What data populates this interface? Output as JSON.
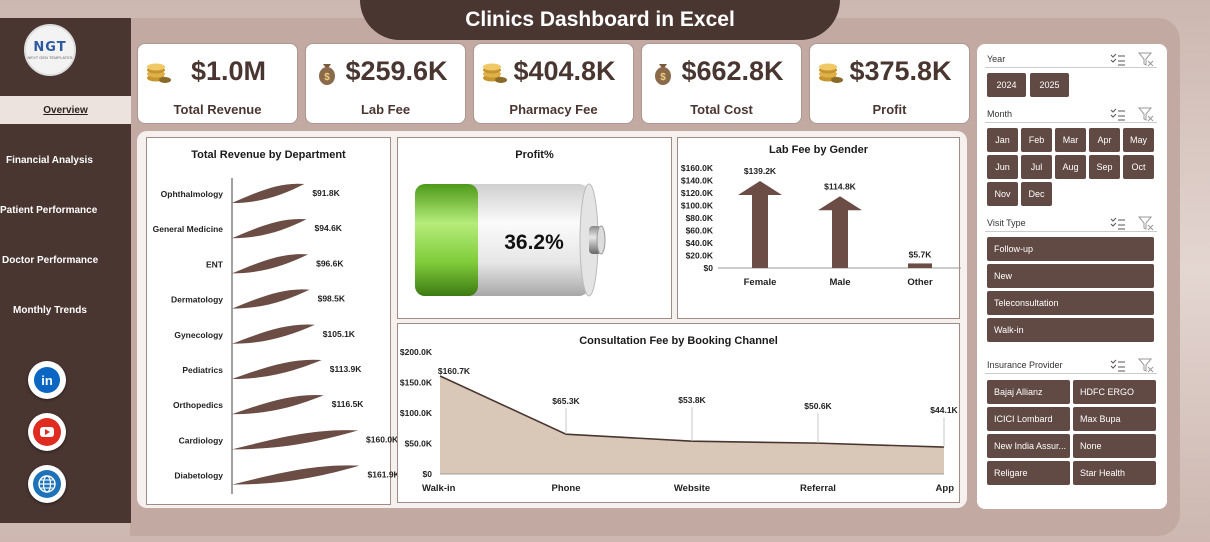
{
  "title": "Clinics Dashboard in Excel",
  "logo": {
    "text": "NGT",
    "subtext": "NEXT GEN TEMPLATES"
  },
  "nav": [
    "Overview",
    "Financial Analysis",
    "Patient  Performance",
    "Doctor Performance",
    "Monthly Trends"
  ],
  "social": [
    "linkedin-icon",
    "youtube-icon",
    "globe-icon"
  ],
  "kpis": [
    {
      "value": "$1.0M",
      "label": "Total Revenue",
      "icon": "coins-icon"
    },
    {
      "value": "$259.6K",
      "label": "Lab Fee",
      "icon": "money-bag-icon"
    },
    {
      "value": "$404.8K",
      "label": "Pharmacy Fee",
      "icon": "coins-icon"
    },
    {
      "value": "$662.8K",
      "label": "Total Cost",
      "icon": "money-bag-icon"
    },
    {
      "value": "$375.8K",
      "label": "Profit",
      "icon": "coins-icon"
    }
  ],
  "colors": {
    "accent": "#4a3631",
    "button": "#614a44",
    "battery_green": "#6fbf2a",
    "area_fill": "#d9c8b8"
  },
  "chart_data": [
    {
      "type": "bar",
      "title": "Total Revenue by Department",
      "orientation": "horizontal",
      "categories": [
        "Ophthalmology",
        "General Medicine",
        "ENT",
        "Dermatology",
        "Gynecology",
        "Pediatrics",
        "Orthopedics",
        "Cardiology",
        "Diabetology"
      ],
      "values": [
        91.8,
        94.6,
        96.6,
        98.5,
        105.1,
        113.9,
        116.5,
        160.0,
        161.9
      ],
      "data_labels": [
        "$91.8K",
        "$94.6K",
        "$96.6K",
        "$98.5K",
        "$105.1K",
        "$113.9K",
        "$116.5K",
        "$160.0K",
        "$161.9K"
      ]
    },
    {
      "type": "gauge",
      "title": "Profit%",
      "value": 36.2,
      "label": "36.2%"
    },
    {
      "type": "bar",
      "title": "Lab Fee by Gender",
      "categories": [
        "Female",
        "Male",
        "Other"
      ],
      "values": [
        139.2,
        114.8,
        5.7
      ],
      "data_labels": [
        "$139.2K",
        "$114.8K",
        "$5.7K"
      ],
      "ylim": [
        0,
        160
      ],
      "yticks": [
        "$0",
        "$20.0K",
        "$40.0K",
        "$60.0K",
        "$80.0K",
        "$100.0K",
        "$120.0K",
        "$140.0K",
        "$160.0K"
      ]
    },
    {
      "type": "area",
      "title": "Consultation Fee by Booking Channel",
      "categories": [
        "Walk-in",
        "Phone",
        "Website",
        "Referral",
        "App"
      ],
      "values": [
        160.7,
        65.3,
        53.8,
        50.6,
        44.1
      ],
      "data_labels": [
        "$160.7K",
        "$65.3K",
        "$53.8K",
        "$50.6K",
        "$44.1K"
      ],
      "ylim": [
        0,
        200
      ],
      "yticks": [
        "$0",
        "$50.0K",
        "$100.0K",
        "$150.0K",
        "$200.0K"
      ]
    }
  ],
  "slicers": {
    "year": {
      "title": "Year",
      "items": [
        "2024",
        "2025"
      ]
    },
    "month": {
      "title": "Month",
      "items": [
        "Jan",
        "Feb",
        "Mar",
        "Apr",
        "May",
        "Jun",
        "Jul",
        "Aug",
        "Sep",
        "Oct",
        "Nov",
        "Dec"
      ]
    },
    "visit": {
      "title": "Visit Type",
      "items": [
        "Follow-up",
        "New",
        "Teleconsultation",
        "Walk-in"
      ]
    },
    "insurance": {
      "title": "Insurance Provider",
      "items": [
        "Bajaj Allianz",
        "HDFC ERGO",
        "ICICI Lombard",
        "Max Bupa",
        "New India Assur...",
        "None",
        "Religare",
        "Star Health"
      ]
    }
  }
}
